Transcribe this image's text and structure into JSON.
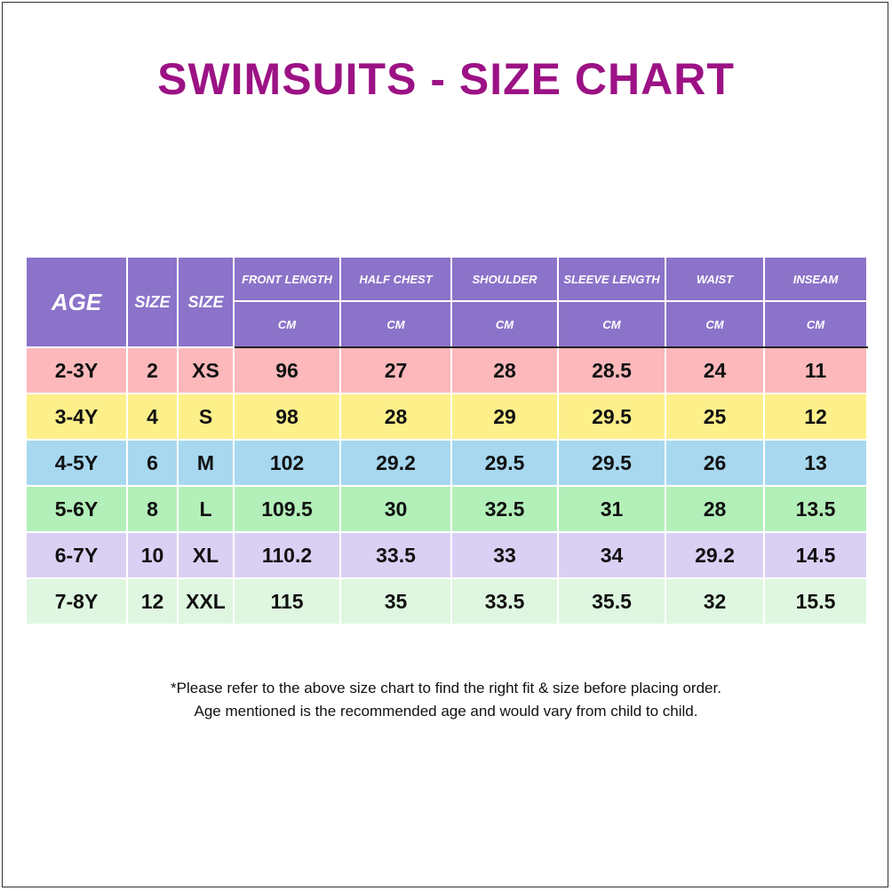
{
  "title": "SWIMSUITS - SIZE CHART",
  "colors": {
    "title": "#9c1285",
    "header_bg": "#8b73c9",
    "row_backgrounds": [
      "#fdb8bb",
      "#fdf08a",
      "#a7d8f0",
      "#b3efb9",
      "#dad0f4",
      "#dff7e0"
    ]
  },
  "table": {
    "headers": [
      "AGE",
      "SIZE",
      "SIZE",
      "FRONT LENGTH",
      "HALF CHEST",
      "SHOULDER",
      "SLEEVE LENGTH",
      "WAIST",
      "INSEAM"
    ],
    "units": [
      "CM",
      "CM",
      "CM",
      "CM",
      "CM",
      "CM"
    ],
    "rows": [
      [
        "2-3Y",
        "2",
        "XS",
        "96",
        "27",
        "28",
        "28.5",
        "24",
        "11"
      ],
      [
        "3-4Y",
        "4",
        "S",
        "98",
        "28",
        "29",
        "29.5",
        "25",
        "12"
      ],
      [
        "4-5Y",
        "6",
        "M",
        "102",
        "29.2",
        "29.5",
        "29.5",
        "26",
        "13"
      ],
      [
        "5-6Y",
        "8",
        "L",
        "109.5",
        "30",
        "32.5",
        "31",
        "28",
        "13.5"
      ],
      [
        "6-7Y",
        "10",
        "XL",
        "110.2",
        "33.5",
        "33",
        "34",
        "29.2",
        "14.5"
      ],
      [
        "7-8Y",
        "12",
        "XXL",
        "115",
        "35",
        "33.5",
        "35.5",
        "32",
        "15.5"
      ]
    ]
  },
  "notes": [
    "*Please refer to the above size chart to find the right fit & size before placing order.",
    "Age mentioned is the recommended age and would vary from child to child."
  ]
}
